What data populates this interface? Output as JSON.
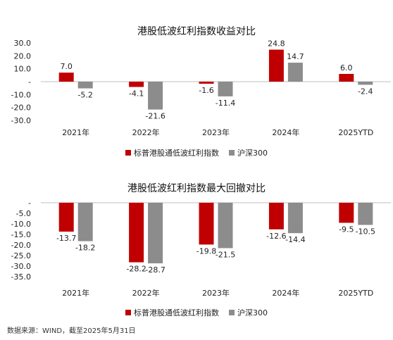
{
  "chart_data": [
    {
      "type": "bar",
      "title": "港股低波红利指数收益对比",
      "categories": [
        "2021年",
        "2022年",
        "2023年",
        "2024年",
        "2025YTD"
      ],
      "series": [
        {
          "name": "标普港股通低波红利指数",
          "values": [
            7.0,
            -4.1,
            -1.6,
            24.8,
            6.0
          ],
          "color": "#c00000"
        },
        {
          "name": "沪深300",
          "values": [
            -5.2,
            -21.6,
            -11.4,
            14.7,
            -2.4
          ],
          "color": "#8c8c8c"
        }
      ],
      "value_labels": [
        [
          "7.0",
          "-4.1",
          "-1.6",
          "24.8",
          "6.0"
        ],
        [
          "-5.2",
          "-21.6",
          "-11.4",
          "14.7",
          "-2.4"
        ]
      ],
      "yticks": [
        "30.0",
        "20.0",
        "10.0",
        "-",
        "-10.0",
        "-20.0",
        "-30.0"
      ],
      "ylim": [
        -30,
        30
      ],
      "legend": "bottom"
    },
    {
      "type": "bar",
      "title": "港股低波红利指数最大回撤对比",
      "categories": [
        "2021年",
        "2022年",
        "2023年",
        "2024年",
        "2025YTD"
      ],
      "series": [
        {
          "name": "标普港股通低波红利指数",
          "values": [
            -13.7,
            -28.2,
            -19.8,
            -12.6,
            -9.5
          ],
          "color": "#c00000"
        },
        {
          "name": "沪深300",
          "values": [
            -18.2,
            -28.7,
            -21.5,
            -14.4,
            -10.5
          ],
          "color": "#8c8c8c"
        }
      ],
      "value_labels": [
        [
          "-13.7",
          "-28.2",
          "-19.8",
          "-12.6",
          "-9.5"
        ],
        [
          "-18.2",
          "-28.7",
          "-21.5",
          "-14.4",
          "-10.5"
        ]
      ],
      "yticks": [
        "-",
        "-5.0",
        "-10.0",
        "-15.0",
        "-20.0",
        "-25.0",
        "-30.0",
        "-35.0"
      ],
      "ylim": [
        -35,
        0
      ],
      "legend": "bottom"
    }
  ],
  "source": "数据来源：WIND，截至2025年5月31日"
}
